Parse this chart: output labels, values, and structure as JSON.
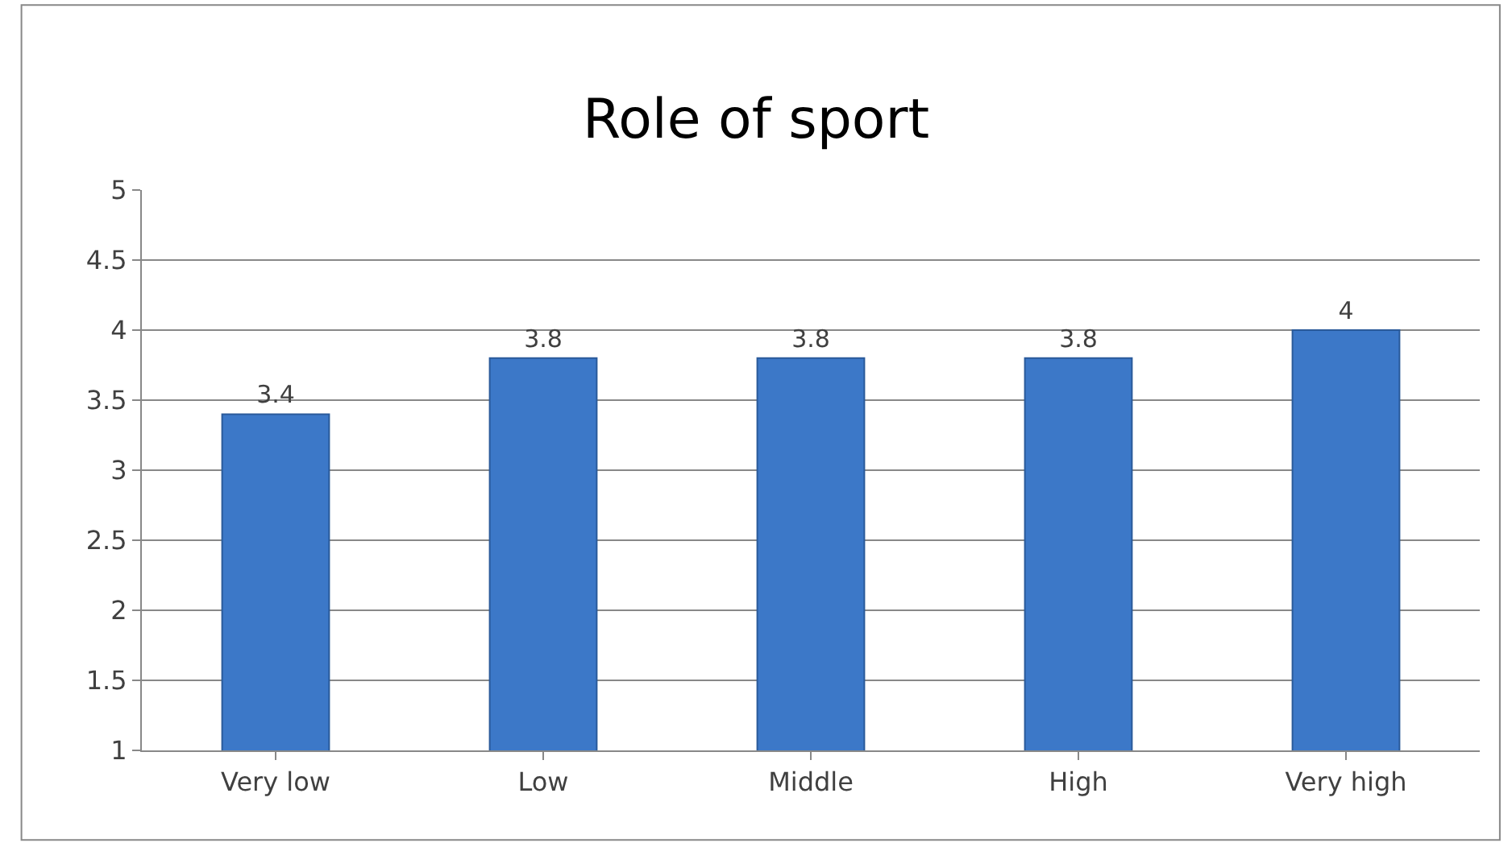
{
  "chart_data": {
    "type": "bar",
    "title": "Role of sport",
    "categories": [
      "Very low",
      "Low",
      "Middle",
      "High",
      "Very high"
    ],
    "values": [
      3.4,
      3.8,
      3.8,
      3.8,
      4
    ],
    "color": "#3c78c8",
    "ylim": [
      1,
      5
    ],
    "yticks": [
      1,
      1.5,
      2,
      2.5,
      3,
      3.5,
      4,
      4.5,
      5
    ],
    "grid": "y",
    "data_labels": true
  }
}
